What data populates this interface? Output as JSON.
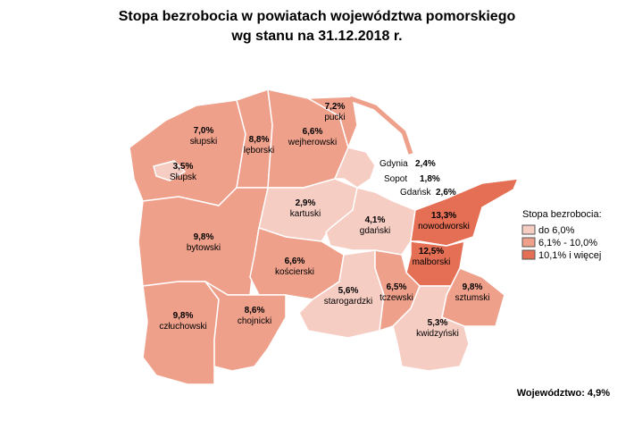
{
  "title": "Stopa bezrobocia w powiatach województwa pomorskiego",
  "subtitle": "wg stanu na 31.12.2018 r.",
  "regions": [
    {
      "name": "słupski",
      "value": "7,0%"
    },
    {
      "name": "Słupsk",
      "value": "3,5%"
    },
    {
      "name": "lęborski",
      "value": "8,8%"
    },
    {
      "name": "wejherowski",
      "value": "6,6%"
    },
    {
      "name": "pucki",
      "value": "7,2%"
    },
    {
      "name": "kartuski",
      "value": "2,9%"
    },
    {
      "name": "gdański",
      "value": "4,1%"
    },
    {
      "name": "nowodworski",
      "value": "13,3%"
    },
    {
      "name": "malborski",
      "value": "12,5%"
    },
    {
      "name": "bytowski",
      "value": "9,8%"
    },
    {
      "name": "kościerski",
      "value": "6,6%"
    },
    {
      "name": "starogardzki",
      "value": "5,6%"
    },
    {
      "name": "tczewski",
      "value": "6,5%"
    },
    {
      "name": "sztumski",
      "value": "9,8%"
    },
    {
      "name": "kwidzyński",
      "value": "5,3%"
    },
    {
      "name": "człuchowski",
      "value": "9,8%"
    },
    {
      "name": "chojnicki",
      "value": "8,6%"
    }
  ],
  "cities": [
    {
      "name": "Gdynia",
      "value": "2,4%"
    },
    {
      "name": "Sopot",
      "value": "1,8%"
    },
    {
      "name": "Gdańsk",
      "value": "2,6%"
    }
  ],
  "legend": {
    "title": "Stopa bezrobocia:",
    "items": [
      "do 6,0%",
      "6,1% - 10,0%",
      "10,1% i więcej"
    ]
  },
  "footer": "Województwo: 4,9%"
}
